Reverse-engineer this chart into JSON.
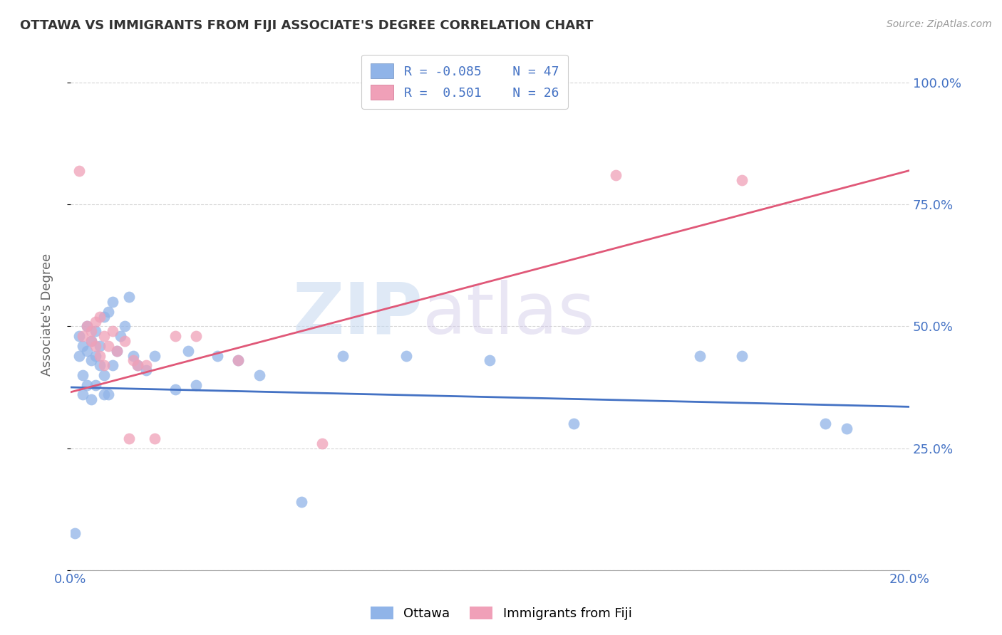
{
  "title": "OTTAWA VS IMMIGRANTS FROM FIJI ASSOCIATE'S DEGREE CORRELATION CHART",
  "source": "Source: ZipAtlas.com",
  "ylabel": "Associate's Degree",
  "xlim": [
    0.0,
    0.2
  ],
  "ylim": [
    0.0,
    1.05
  ],
  "color_ottawa": "#90b4e8",
  "color_fiji": "#f0a0b8",
  "color_trendline_ottawa": "#4472c4",
  "color_trendline_fiji": "#e05878",
  "color_axis_labels": "#4472c4",
  "watermark_zip": "ZIP",
  "watermark_atlas": "atlas",
  "background_color": "#ffffff",
  "grid_color": "#cccccc",
  "ottawa_x": [
    0.001,
    0.002,
    0.002,
    0.003,
    0.003,
    0.003,
    0.004,
    0.004,
    0.004,
    0.005,
    0.005,
    0.005,
    0.006,
    0.006,
    0.006,
    0.007,
    0.007,
    0.008,
    0.008,
    0.008,
    0.009,
    0.009,
    0.01,
    0.01,
    0.011,
    0.012,
    0.013,
    0.014,
    0.015,
    0.016,
    0.018,
    0.02,
    0.025,
    0.028,
    0.03,
    0.035,
    0.04,
    0.045,
    0.055,
    0.065,
    0.08,
    0.1,
    0.12,
    0.15,
    0.16,
    0.18,
    0.185
  ],
  "ottawa_y": [
    0.075,
    0.48,
    0.44,
    0.46,
    0.4,
    0.36,
    0.5,
    0.45,
    0.38,
    0.47,
    0.43,
    0.35,
    0.49,
    0.44,
    0.38,
    0.46,
    0.42,
    0.52,
    0.4,
    0.36,
    0.53,
    0.36,
    0.55,
    0.42,
    0.45,
    0.48,
    0.5,
    0.56,
    0.44,
    0.42,
    0.41,
    0.44,
    0.37,
    0.45,
    0.38,
    0.44,
    0.43,
    0.4,
    0.14,
    0.44,
    0.44,
    0.43,
    0.3,
    0.44,
    0.44,
    0.3,
    0.29
  ],
  "fiji_x": [
    0.002,
    0.003,
    0.004,
    0.005,
    0.005,
    0.006,
    0.006,
    0.007,
    0.007,
    0.008,
    0.008,
    0.009,
    0.01,
    0.011,
    0.013,
    0.014,
    0.015,
    0.016,
    0.018,
    0.02,
    0.025,
    0.03,
    0.04,
    0.06,
    0.13,
    0.16
  ],
  "fiji_y": [
    0.82,
    0.48,
    0.5,
    0.47,
    0.49,
    0.46,
    0.51,
    0.44,
    0.52,
    0.48,
    0.42,
    0.46,
    0.49,
    0.45,
    0.47,
    0.27,
    0.43,
    0.42,
    0.42,
    0.27,
    0.48,
    0.48,
    0.43,
    0.26,
    0.81,
    0.8
  ],
  "ottawa_trend": [
    0.375,
    0.335
  ],
  "fiji_trend": [
    0.365,
    0.82
  ]
}
